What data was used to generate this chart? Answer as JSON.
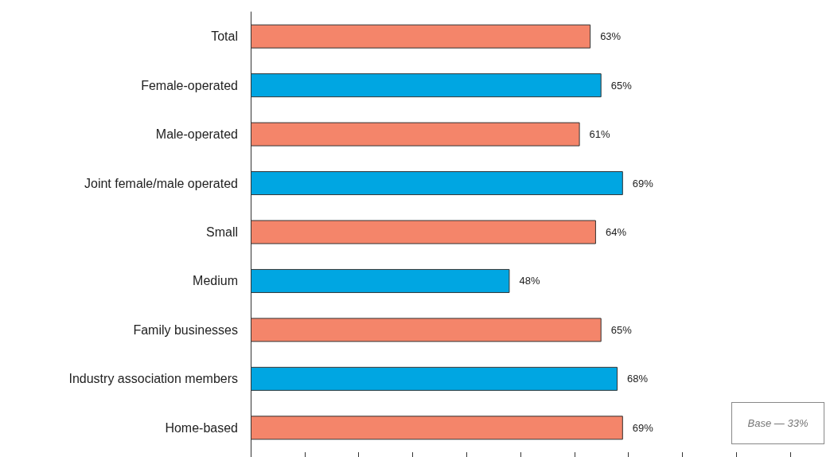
{
  "chart_data": {
    "type": "bar",
    "orientation": "horizontal",
    "categories": [
      "Total",
      "Female-operated",
      "Male-operated",
      "Joint female/male operated",
      "Small",
      "Medium",
      "Family businesses",
      "Industry association members",
      "Home-based"
    ],
    "values": [
      63,
      65,
      61,
      69,
      64,
      48,
      65,
      68,
      69
    ],
    "colors": [
      "#f4856a",
      "#00a6e2",
      "#f4856a",
      "#00a6e2",
      "#f4856a",
      "#00a6e2",
      "#f4856a",
      "#00a6e2",
      "#f4856a"
    ],
    "value_labels": [
      "63%",
      "65%",
      "61%",
      "69%",
      "64%",
      "48%",
      "65%",
      "68%",
      "69%"
    ],
    "xticks": [
      {
        "value": 0,
        "label": null
      },
      {
        "value": 10,
        "label": null
      },
      {
        "value": 20,
        "label": null
      },
      {
        "value": 30,
        "label": null
      },
      {
        "value": 40,
        "label": null
      },
      {
        "value": 50,
        "label": null
      },
      {
        "value": 60,
        "label": null
      },
      {
        "value": 70,
        "label": null
      },
      {
        "value": 80,
        "label": null
      },
      {
        "value": 90,
        "label": null
      },
      {
        "value": 100,
        "label": null
      }
    ],
    "tick_labels": "y",
    "grid": false,
    "annotations": [
      "Base — 33%"
    ]
  }
}
